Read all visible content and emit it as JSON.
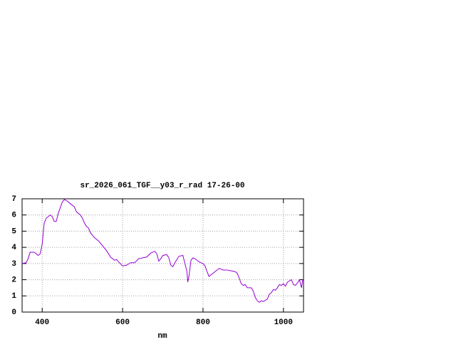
{
  "chart_data": {
    "type": "line",
    "title": "sr_2026_061_TGF__y03_r_rad 17-26-00",
    "x_label": "nm",
    "x": [
      350,
      360,
      365,
      370,
      380,
      390,
      395,
      400,
      405,
      410,
      420,
      425,
      430,
      435,
      440,
      450,
      455,
      460,
      470,
      480,
      485,
      490,
      495,
      500,
      505,
      510,
      515,
      520,
      530,
      540,
      550,
      560,
      570,
      580,
      585,
      590,
      600,
      610,
      620,
      630,
      640,
      650,
      660,
      670,
      680,
      685,
      690,
      695,
      700,
      710,
      715,
      720,
      725,
      730,
      740,
      750,
      755,
      760,
      762,
      765,
      770,
      775,
      780,
      790,
      800,
      805,
      810,
      815,
      820,
      830,
      840,
      850,
      860,
      870,
      880,
      885,
      890,
      895,
      900,
      905,
      910,
      920,
      925,
      930,
      935,
      940,
      945,
      950,
      960,
      965,
      970,
      975,
      980,
      985,
      990,
      995,
      1000,
      1005,
      1010,
      1020,
      1025,
      1030,
      1035,
      1040,
      1045,
      1048
    ],
    "series": [
      {
        "color": "#9400d3",
        "values": [
          3.0,
          3.05,
          3.3,
          3.7,
          3.7,
          3.5,
          3.6,
          4.2,
          5.5,
          5.8,
          6.0,
          5.9,
          5.6,
          5.6,
          6.1,
          6.8,
          6.95,
          6.9,
          6.7,
          6.5,
          6.2,
          6.1,
          6.0,
          5.8,
          5.5,
          5.3,
          5.2,
          4.9,
          4.6,
          4.4,
          4.1,
          3.8,
          3.4,
          3.2,
          3.25,
          3.1,
          2.85,
          2.9,
          3.05,
          3.05,
          3.3,
          3.35,
          3.4,
          3.65,
          3.75,
          3.6,
          3.15,
          3.3,
          3.5,
          3.55,
          3.35,
          2.9,
          2.8,
          3.05,
          3.45,
          3.5,
          3.0,
          2.5,
          1.85,
          2.2,
          3.2,
          3.35,
          3.3,
          3.1,
          3.0,
          2.85,
          2.5,
          2.2,
          2.3,
          2.5,
          2.7,
          2.6,
          2.6,
          2.55,
          2.5,
          2.4,
          2.1,
          1.75,
          1.65,
          1.7,
          1.5,
          1.5,
          1.3,
          0.9,
          0.7,
          0.6,
          0.7,
          0.65,
          0.8,
          1.1,
          1.2,
          1.4,
          1.35,
          1.5,
          1.7,
          1.65,
          1.75,
          1.6,
          1.85,
          2.0,
          1.7,
          1.65,
          1.8,
          2.0,
          1.5,
          2.0
        ]
      }
    ],
    "xlim": [
      350,
      1050
    ],
    "xticks": [
      400,
      600,
      800,
      1000
    ],
    "ylim": [
      0,
      7
    ],
    "yticks": [
      0,
      1,
      2,
      3,
      4,
      5,
      6,
      7
    ],
    "grid": true
  }
}
